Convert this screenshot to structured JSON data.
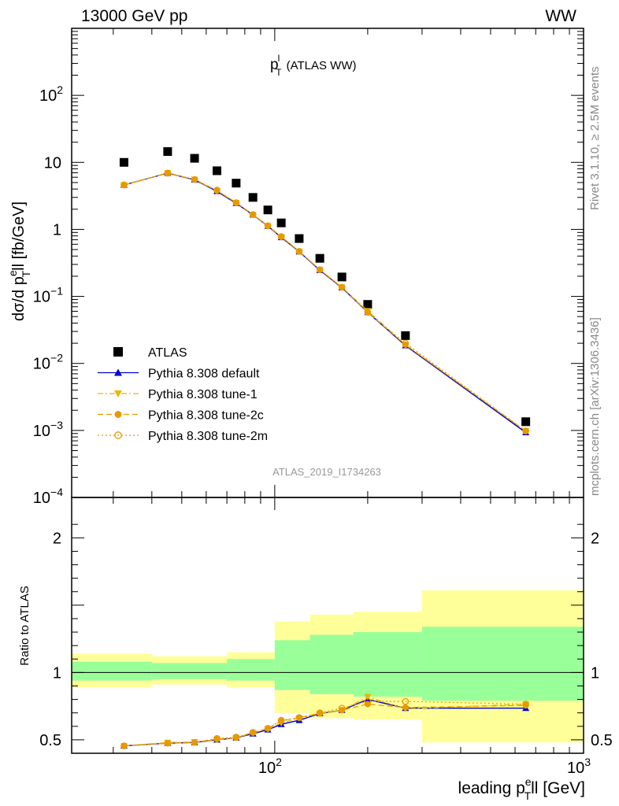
{
  "header": {
    "energy_label": "13000 GeV pp",
    "process_label": "WW"
  },
  "side_labels": {
    "rivet": "Rivet 3.1.10, ≥ 2.5M events",
    "mcplots": "mcplots.cern.ch [arXiv:1306.3436]"
  },
  "chart_data": [
    {
      "type": "scatter",
      "title_main": "p",
      "title_sup": "l",
      "title_sub": "T",
      "title_rest": "(ATLAS WW)",
      "analysis_label": "ATLAS_2019_I1734263",
      "ylabel_pre": "dσ/d p",
      "ylabel_sup": "e",
      "ylabel_sub": "T",
      "ylabel_post": "ll [fb/GeV]",
      "x_scale": "log",
      "y_scale": "log",
      "xlim": [
        22,
        1000
      ],
      "ylim": [
        0.0001,
        1000
      ],
      "y_ticks": [
        {
          "v": 100,
          "base": "10",
          "exp": "2"
        },
        {
          "v": 10,
          "base": "10",
          "exp": ""
        },
        {
          "v": 1,
          "base": "1",
          "exp": ""
        },
        {
          "v": 0.1,
          "base": "10",
          "exp": "−1"
        },
        {
          "v": 0.01,
          "base": "10",
          "exp": "−2"
        },
        {
          "v": 0.001,
          "base": "10",
          "exp": "−3"
        },
        {
          "v": 0.0001,
          "base": "10",
          "exp": "−4"
        }
      ],
      "legend_position": "bottom-left",
      "x": [
        32.5,
        45,
        55,
        65,
        75,
        85,
        95,
        105,
        120,
        140,
        165,
        200,
        265,
        650
      ],
      "series": [
        {
          "name": "ATLAS",
          "color": "#000000",
          "marker": "square",
          "line": "none",
          "values": [
            10.0,
            14.5,
            11.5,
            7.5,
            4.9,
            3.0,
            1.95,
            1.25,
            0.73,
            0.37,
            0.195,
            0.076,
            0.026,
            0.00135
          ]
        },
        {
          "name": "Pythia 8.308 default",
          "color": "#0000cc",
          "marker": "triangle-up",
          "line": "solid",
          "values": [
            4.6,
            6.9,
            5.5,
            3.7,
            2.45,
            1.65,
            1.12,
            0.76,
            0.465,
            0.245,
            0.135,
            0.058,
            0.0185,
            0.00093
          ]
        },
        {
          "name": "Pythia 8.308 tune-1",
          "color": "#e8b800",
          "marker": "triangle-down",
          "line": "dashdot",
          "values": [
            4.6,
            7.0,
            5.55,
            3.75,
            2.5,
            1.66,
            1.13,
            0.77,
            0.47,
            0.25,
            0.137,
            0.061,
            0.019,
            0.00098
          ]
        },
        {
          "name": "Pythia 8.308 tune-2c",
          "color": "#e69a00",
          "marker": "circle",
          "line": "dashed",
          "values": [
            4.6,
            6.9,
            5.55,
            3.8,
            2.5,
            1.66,
            1.13,
            0.78,
            0.47,
            0.25,
            0.137,
            0.058,
            0.019,
            0.00098
          ]
        },
        {
          "name": "Pythia 8.308 tune-2m",
          "color": "#e69a00",
          "marker": "open-circle",
          "line": "dotted",
          "values": [
            4.6,
            6.9,
            5.55,
            3.85,
            2.5,
            1.66,
            1.13,
            0.78,
            0.47,
            0.25,
            0.137,
            0.058,
            0.02,
            0.00098
          ]
        }
      ]
    },
    {
      "type": "line",
      "ylabel": "Ratio to ATLAS",
      "xlabel_pre": "leading p",
      "xlabel_sup": "e",
      "xlabel_sub": "T",
      "xlabel_post": "ll [GeV]",
      "x_scale": "log",
      "xlim": [
        22,
        1000
      ],
      "ylim": [
        0.4,
        2.3
      ],
      "y_ticks": [
        0.5,
        1,
        2
      ],
      "y_tick_labels": [
        "0.5",
        "1",
        "2"
      ],
      "x_ticks": [
        {
          "v": 100,
          "base": "10",
          "exp": "2"
        },
        {
          "v": 1000,
          "base": "10",
          "exp": "3"
        }
      ],
      "reference_line": 1,
      "bins": [
        {
          "lo": 22,
          "hi": 40
        },
        {
          "lo": 40,
          "hi": 70
        },
        {
          "lo": 70,
          "hi": 100
        },
        {
          "lo": 100,
          "hi": 130
        },
        {
          "lo": 130,
          "hi": 180
        },
        {
          "lo": 180,
          "hi": 300
        },
        {
          "lo": 300,
          "hi": 1000
        }
      ],
      "band_stat_low": [
        0.94,
        0.95,
        0.94,
        0.87,
        0.84,
        0.82,
        0.79
      ],
      "band_stat_high": [
        1.08,
        1.07,
        1.1,
        1.24,
        1.28,
        1.3,
        1.34
      ],
      "band_total_low": [
        0.89,
        0.91,
        0.89,
        0.7,
        0.66,
        0.65,
        0.48
      ],
      "band_total_high": [
        1.14,
        1.12,
        1.15,
        1.38,
        1.43,
        1.45,
        1.61
      ],
      "x": [
        32.5,
        45,
        55,
        65,
        75,
        85,
        95,
        105,
        120,
        140,
        165,
        200,
        265,
        650
      ],
      "series": [
        {
          "name": "Pythia 8.308 default",
          "color": "#0000cc",
          "marker": "triangle-up",
          "line": "solid",
          "values": [
            0.455,
            0.475,
            0.48,
            0.5,
            0.515,
            0.545,
            0.575,
            0.615,
            0.645,
            0.695,
            0.72,
            0.8,
            0.735,
            0.735
          ]
        },
        {
          "name": "Pythia 8.308 tune-1",
          "color": "#e8b800",
          "marker": "triangle-down",
          "line": "dashdot",
          "values": [
            0.455,
            0.48,
            0.485,
            0.5,
            0.515,
            0.55,
            0.58,
            0.625,
            0.66,
            0.695,
            0.72,
            0.82,
            0.73,
            0.765
          ]
        },
        {
          "name": "Pythia 8.308 tune-2c",
          "color": "#e69a00",
          "marker": "circle",
          "line": "dashed",
          "values": [
            0.455,
            0.475,
            0.48,
            0.505,
            0.515,
            0.555,
            0.585,
            0.64,
            0.665,
            0.695,
            0.72,
            0.765,
            0.74,
            0.755
          ]
        },
        {
          "name": "Pythia 8.308 tune-2m",
          "color": "#e69a00",
          "marker": "open-circle",
          "line": "dotted",
          "values": [
            0.455,
            0.475,
            0.48,
            0.51,
            0.52,
            0.555,
            0.585,
            0.645,
            0.665,
            0.7,
            0.735,
            0.785,
            0.785,
            0.765
          ]
        }
      ]
    }
  ]
}
